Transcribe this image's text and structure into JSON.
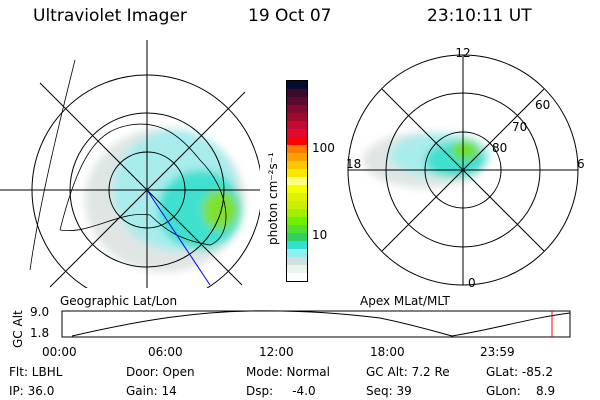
{
  "header": {
    "instrument": "Ultraviolet Imager",
    "date": "19 Oct 07",
    "time": "23:10:11 UT"
  },
  "left_panel": {
    "label": "Geographic Lat/Lon"
  },
  "right_panel": {
    "label": "Apex MLat/MLT",
    "mlt_labels": [
      "12",
      "6",
      "0",
      "18"
    ],
    "mlat_labels": [
      "60",
      "70",
      "80"
    ]
  },
  "colorbar": {
    "unit_label": "photon cm⁻²s⁻¹",
    "tick_labels": [
      "100",
      "10"
    ],
    "colors": [
      "#0a0a30",
      "#3a0a2a",
      "#5a0a30",
      "#800a30",
      "#a00a2a",
      "#c00a30",
      "#e00a30",
      "#ff0000",
      "#ff7a00",
      "#ffa000",
      "#ffc800",
      "#ffe600",
      "#ffff80",
      "#f4ff00",
      "#e0f000",
      "#c8f000",
      "#a0f000",
      "#70f000",
      "#50e030",
      "#30d060",
      "#30e0d0",
      "#90f0f0",
      "#d0e0e0",
      "#e8f4ec",
      "#ffffff"
    ]
  },
  "altitude_plot": {
    "ylabel": "GC Alt",
    "yticks": [
      "9.0",
      "1.8"
    ],
    "xticks": [
      "00:00",
      "06:00",
      "12:00",
      "18:00",
      "23:59"
    ],
    "current_marker_color": "#ff0000"
  },
  "status": {
    "flt": "Flt: LBHL",
    "ip": "IP: 36.0",
    "door": "Door: Open",
    "gain": "Gain: 14",
    "mode": "Mode: Normal",
    "dsp": "Dsp:     -4.0",
    "gcalt": "GC Alt: 7.2 Re",
    "seq": "Seq: 39",
    "glat": "GLat: -85.2",
    "glon": "GLon:    8.9"
  }
}
